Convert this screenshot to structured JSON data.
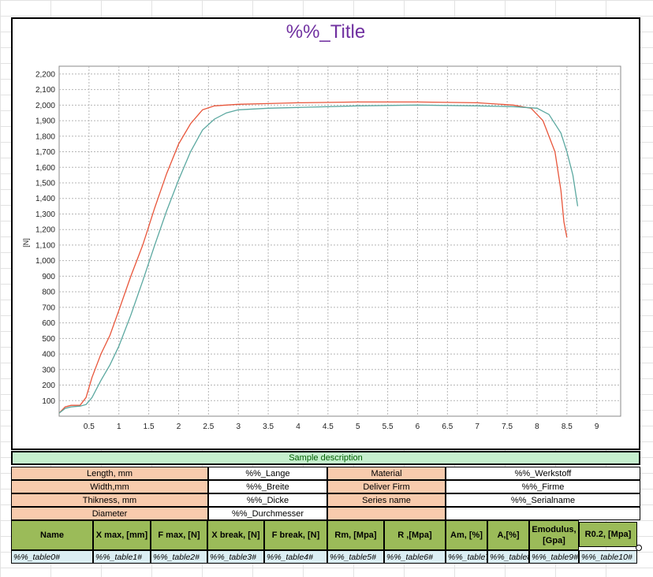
{
  "title": "%%_Title",
  "chart_data": {
    "type": "line",
    "title": "",
    "xlabel": "",
    "ylabel": "[N]",
    "xlim": [
      0,
      9.4
    ],
    "ylim": [
      0,
      2250
    ],
    "xticks": [
      "0.5",
      "1",
      "1.5",
      "2",
      "2.5",
      "3",
      "3.5",
      "4",
      "4.5",
      "5",
      "5.5",
      "6",
      "6.5",
      "7",
      "7.5",
      "8",
      "8.5",
      "9"
    ],
    "xtick_values": [
      0.5,
      1,
      1.5,
      2,
      2.5,
      3,
      3.5,
      4,
      4.5,
      5,
      5.5,
      6,
      6.5,
      7,
      7.5,
      8,
      8.5,
      9
    ],
    "yticks": [
      "100",
      "200",
      "300",
      "400",
      "500",
      "600",
      "700",
      "800",
      "900",
      "1,000",
      "1,100",
      "1,200",
      "1,300",
      "1,400",
      "1,500",
      "1,600",
      "1,700",
      "1,800",
      "1,900",
      "2,000",
      "2,100",
      "2,200"
    ],
    "ytick_values": [
      100,
      200,
      300,
      400,
      500,
      600,
      700,
      800,
      900,
      1000,
      1100,
      1200,
      1300,
      1400,
      1500,
      1600,
      1700,
      1800,
      1900,
      2000,
      2100,
      2200
    ],
    "grid": true,
    "series": [
      {
        "color": "#e8553a",
        "x": [
          0,
          0.1,
          0.2,
          0.35,
          0.45,
          0.55,
          0.7,
          0.85,
          1.0,
          1.2,
          1.4,
          1.6,
          1.8,
          2.0,
          2.2,
          2.4,
          2.6,
          2.8,
          3.0,
          3.5,
          4.0,
          5.0,
          6.0,
          7.0,
          7.6,
          7.9,
          8.1,
          8.3,
          8.4,
          8.45,
          8.5
        ],
        "y": [
          20,
          60,
          70,
          70,
          120,
          250,
          400,
          520,
          680,
          900,
          1100,
          1340,
          1560,
          1750,
          1880,
          1970,
          1995,
          2000,
          2005,
          2010,
          2015,
          2020,
          2020,
          2015,
          2000,
          1980,
          1900,
          1700,
          1450,
          1250,
          1150
        ]
      },
      {
        "color": "#5ba8a0",
        "x": [
          0,
          0.1,
          0.2,
          0.35,
          0.45,
          0.55,
          0.7,
          0.85,
          1.0,
          1.2,
          1.4,
          1.6,
          1.8,
          2.0,
          2.2,
          2.4,
          2.6,
          2.8,
          3.0,
          3.5,
          4.0,
          5.0,
          6.0,
          7.0,
          7.6,
          8.0,
          8.2,
          8.4,
          8.5,
          8.6,
          8.68
        ],
        "y": [
          20,
          50,
          60,
          65,
          75,
          120,
          230,
          330,
          450,
          650,
          870,
          1100,
          1320,
          1520,
          1700,
          1840,
          1910,
          1950,
          1970,
          1980,
          1985,
          1995,
          2000,
          1995,
          1990,
          1980,
          1940,
          1820,
          1700,
          1550,
          1350
        ]
      }
    ]
  },
  "description": {
    "header": "Sample description",
    "rows": [
      {
        "label": "Length, mm",
        "value": "%%_Lange",
        "label2": "Material",
        "value2": "%%_Werkstoff"
      },
      {
        "label": "Width,mm",
        "value": "%%_Breite",
        "label2": "Deliver Firm",
        "value2": "%%_Firme"
      },
      {
        "label": "Thikness, mm",
        "value": "%%_Dicke",
        "label2": "Series name",
        "value2": "%%_Serialname"
      },
      {
        "label": "Diameter",
        "value": "%%_Durchmesser",
        "label2": "",
        "value2": ""
      }
    ]
  },
  "table": {
    "headers": [
      "Name",
      "X max, [mm]",
      "F max, [N]",
      "X break, [N]",
      "F break, [N]",
      "Rm, [Mpa]",
      "R ,[Mpa]",
      "Am, [%]",
      "A,[%]",
      "Emodulus, [Gpa]",
      "R0.2, [Mpa]"
    ],
    "row": [
      "%%_table0#",
      "%%_table1#",
      "%%_table2#",
      "%%_table3#",
      "%%_table4#",
      "%%_table5#",
      "%%_table6#",
      "%%_table7#",
      "%%_table8#",
      "%%_table9#",
      "%%_table10#"
    ]
  }
}
